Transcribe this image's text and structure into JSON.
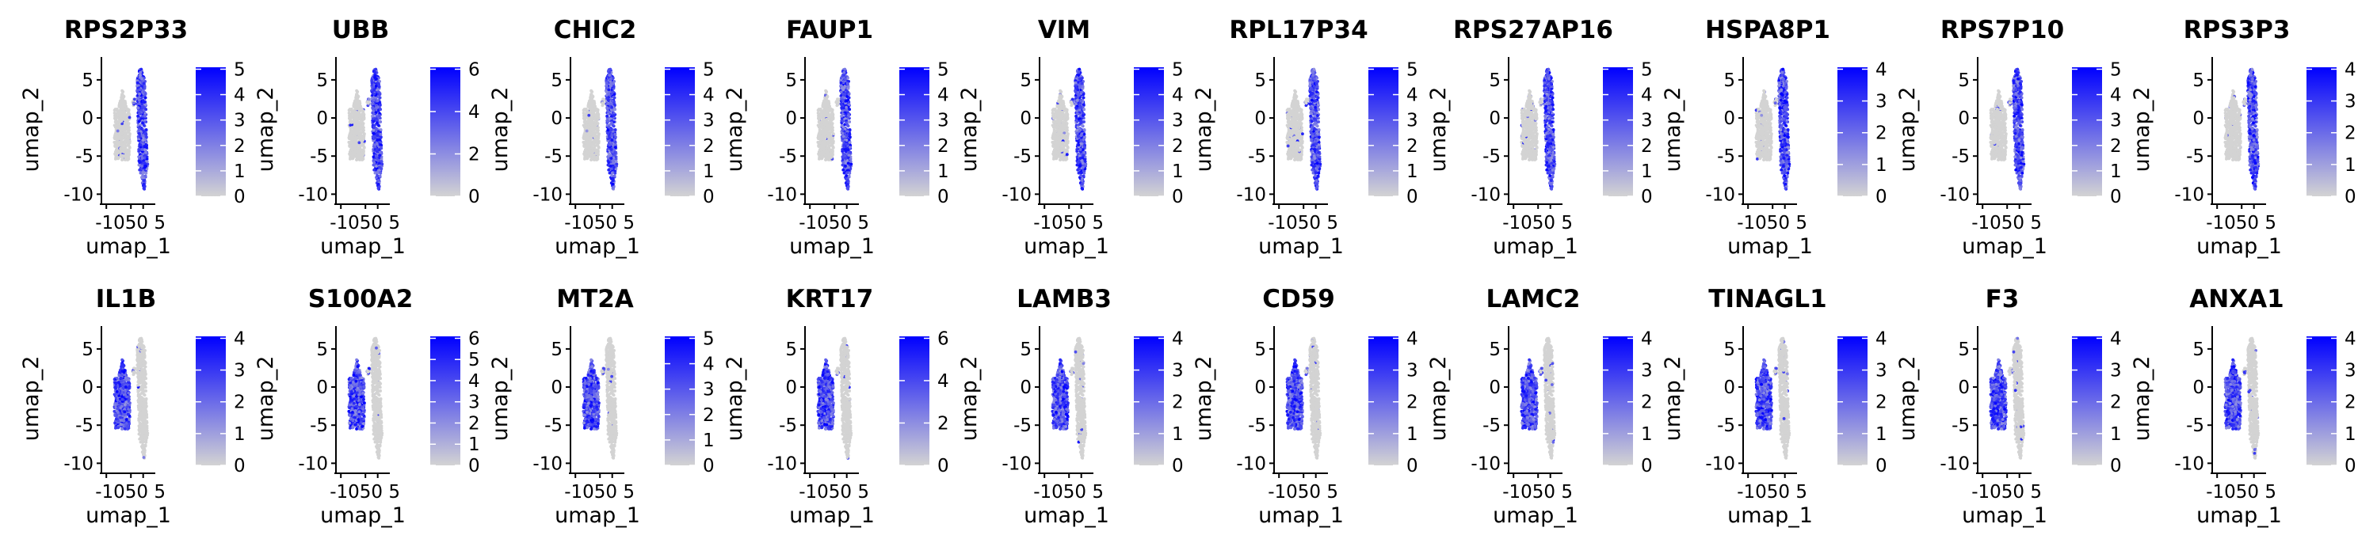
{
  "chart_data": {
    "type": "scatter",
    "description": "Feature plots: UMAP embedding colored by gene expression level",
    "xlabel": "umap_1",
    "ylabel": "umap_2",
    "xticks": [
      -10,
      0,
      5
    ],
    "xtick_labels": [
      "-10",
      "0",
      "5"
    ],
    "xtick_label_text": "-1050 5",
    "yticks": [
      -10,
      -5,
      0,
      5
    ],
    "xlim": [
      -12,
      8
    ],
    "ylim": [
      -11,
      8
    ],
    "color_low": "#d3d3d3",
    "color_high": "#0000ff",
    "legend": "colorbar-right",
    "clusters": [
      {
        "name": "right-elongated",
        "x_range": [
          2.5,
          6.5
        ],
        "y_range": [
          -9.5,
          6.5
        ]
      },
      {
        "name": "left-blob",
        "x_range": [
          -7,
          0
        ],
        "y_range": [
          -5.5,
          3.5
        ]
      }
    ],
    "panels": [
      {
        "gene": "RPS2P33",
        "max": 5,
        "cbar_ticks": [
          0,
          1,
          2,
          3,
          4,
          5
        ],
        "high_cluster": "right"
      },
      {
        "gene": "UBB",
        "max": 6,
        "cbar_ticks": [
          0,
          2,
          4,
          6
        ],
        "high_cluster": "right"
      },
      {
        "gene": "CHIC2",
        "max": 5,
        "cbar_ticks": [
          0,
          1,
          2,
          3,
          4,
          5
        ],
        "high_cluster": "right"
      },
      {
        "gene": "FAUP1",
        "max": 5,
        "cbar_ticks": [
          0,
          1,
          2,
          3,
          4,
          5
        ],
        "high_cluster": "right"
      },
      {
        "gene": "VIM",
        "max": 5,
        "cbar_ticks": [
          0,
          1,
          2,
          3,
          4,
          5
        ],
        "high_cluster": "right"
      },
      {
        "gene": "RPL17P34",
        "max": 5,
        "cbar_ticks": [
          0,
          1,
          2,
          3,
          4,
          5
        ],
        "high_cluster": "right"
      },
      {
        "gene": "RPS27AP16",
        "max": 5,
        "cbar_ticks": [
          0,
          1,
          2,
          3,
          4,
          5
        ],
        "high_cluster": "right"
      },
      {
        "gene": "HSPA8P1",
        "max": 4,
        "cbar_ticks": [
          0,
          1,
          2,
          3,
          4
        ],
        "high_cluster": "right"
      },
      {
        "gene": "RPS7P10",
        "max": 5,
        "cbar_ticks": [
          0,
          1,
          2,
          3,
          4,
          5
        ],
        "high_cluster": "right"
      },
      {
        "gene": "RPS3P3",
        "max": 4,
        "cbar_ticks": [
          0,
          1,
          2,
          3,
          4
        ],
        "high_cluster": "right"
      },
      {
        "gene": "IL1B",
        "max": 4,
        "cbar_ticks": [
          0,
          1,
          2,
          3,
          4
        ],
        "high_cluster": "left"
      },
      {
        "gene": "S100A2",
        "max": 6,
        "cbar_ticks": [
          0,
          1,
          2,
          3,
          4,
          5,
          6
        ],
        "high_cluster": "left"
      },
      {
        "gene": "MT2A",
        "max": 5,
        "cbar_ticks": [
          0,
          1,
          2,
          3,
          4,
          5
        ],
        "high_cluster": "left"
      },
      {
        "gene": "KRT17",
        "max": 6,
        "cbar_ticks": [
          0,
          2,
          4,
          6
        ],
        "high_cluster": "left"
      },
      {
        "gene": "LAMB3",
        "max": 4,
        "cbar_ticks": [
          0,
          1,
          2,
          3,
          4
        ],
        "high_cluster": "left"
      },
      {
        "gene": "CD59",
        "max": 4,
        "cbar_ticks": [
          0,
          1,
          2,
          3,
          4
        ],
        "high_cluster": "left"
      },
      {
        "gene": "LAMC2",
        "max": 4,
        "cbar_ticks": [
          0,
          1,
          2,
          3,
          4
        ],
        "high_cluster": "left"
      },
      {
        "gene": "TINAGL1",
        "max": 4,
        "cbar_ticks": [
          0,
          1,
          2,
          3,
          4
        ],
        "high_cluster": "left"
      },
      {
        "gene": "F3",
        "max": 4,
        "cbar_ticks": [
          0,
          1,
          2,
          3,
          4
        ],
        "high_cluster": "left"
      },
      {
        "gene": "ANXA1",
        "max": 4,
        "cbar_ticks": [
          0,
          1,
          2,
          3,
          4
        ],
        "high_cluster": "left"
      }
    ]
  }
}
